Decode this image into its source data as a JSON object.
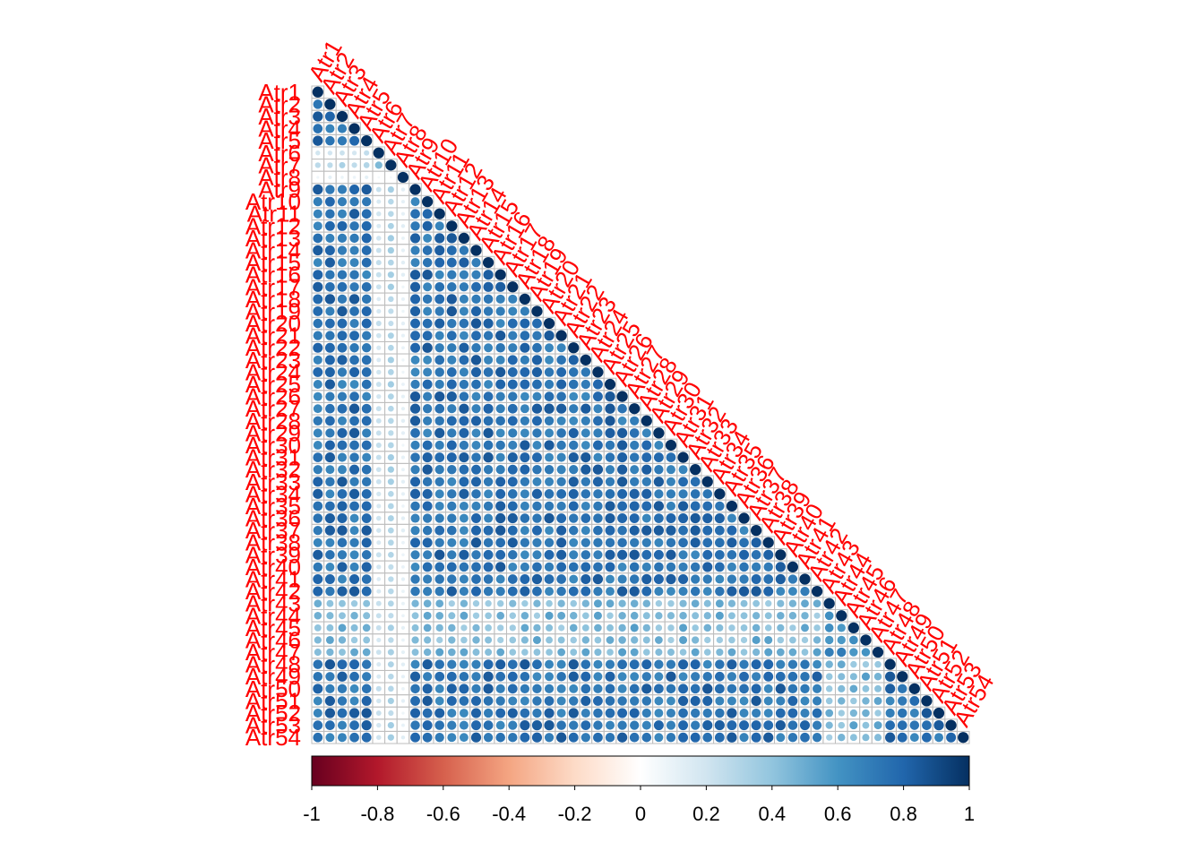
{
  "chart_data": {
    "type": "heatmap",
    "layout": "lower-triangle correlation matrix, circle glyphs",
    "labels": [
      "Atr1",
      "Atr2",
      "Atr3",
      "Atr4",
      "Atr5",
      "Atr6",
      "Atr7",
      "Atr8",
      "Atr9",
      "Atr10",
      "Atr11",
      "Atr12",
      "Atr13",
      "Atr14",
      "Atr15",
      "Atr16",
      "Atr17",
      "Atr18",
      "Atr19",
      "Atr20",
      "Atr21",
      "Atr22",
      "Atr23",
      "Atr24",
      "Atr25",
      "Atr26",
      "Atr27",
      "Atr28",
      "Atr29",
      "Atr30",
      "Atr31",
      "Atr32",
      "Atr33",
      "Atr34",
      "Atr35",
      "Atr36",
      "Atr37",
      "Atr38",
      "Atr39",
      "Atr40",
      "Atr41",
      "Atr42",
      "Atr43",
      "Atr44",
      "Atr45",
      "Atr46",
      "Atr47",
      "Atr48",
      "Atr49",
      "Atr50",
      "Atr51",
      "Atr52",
      "Atr53",
      "Atr54"
    ],
    "value_range": [
      -1,
      1
    ],
    "colorbar": {
      "ticks": [
        -1,
        -0.8,
        -0.6,
        -0.4,
        -0.2,
        0,
        0.2,
        0.4,
        0.6,
        0.8,
        1
      ],
      "tick_labels": [
        "-1",
        "-0.8",
        "-0.6",
        "-0.4",
        "-0.2",
        "0",
        "0.2",
        "0.4",
        "0.6",
        "0.8",
        "1"
      ],
      "colors": [
        "#67001F",
        "#B2182B",
        "#D6604D",
        "#F4A582",
        "#FDDBC7",
        "#FFFFFF",
        "#D1E5F0",
        "#92C5DE",
        "#4393C3",
        "#2166AC",
        "#053061"
      ],
      "placement": "bottom"
    },
    "estimated_correlations": {
      "diagonal": 1.0,
      "typical_pair": 0.75,
      "Atr6_vs_others": 0.2,
      "Atr7_vs_others": 0.3,
      "Atr8_vs_Atr6_Atr7": 0.05,
      "Atr43_to_Atr47_vs_others": 0.45
    },
    "colors": {
      "label": "#ff0000",
      "grid": "#bebebe",
      "tick_text": "#000000"
    }
  }
}
